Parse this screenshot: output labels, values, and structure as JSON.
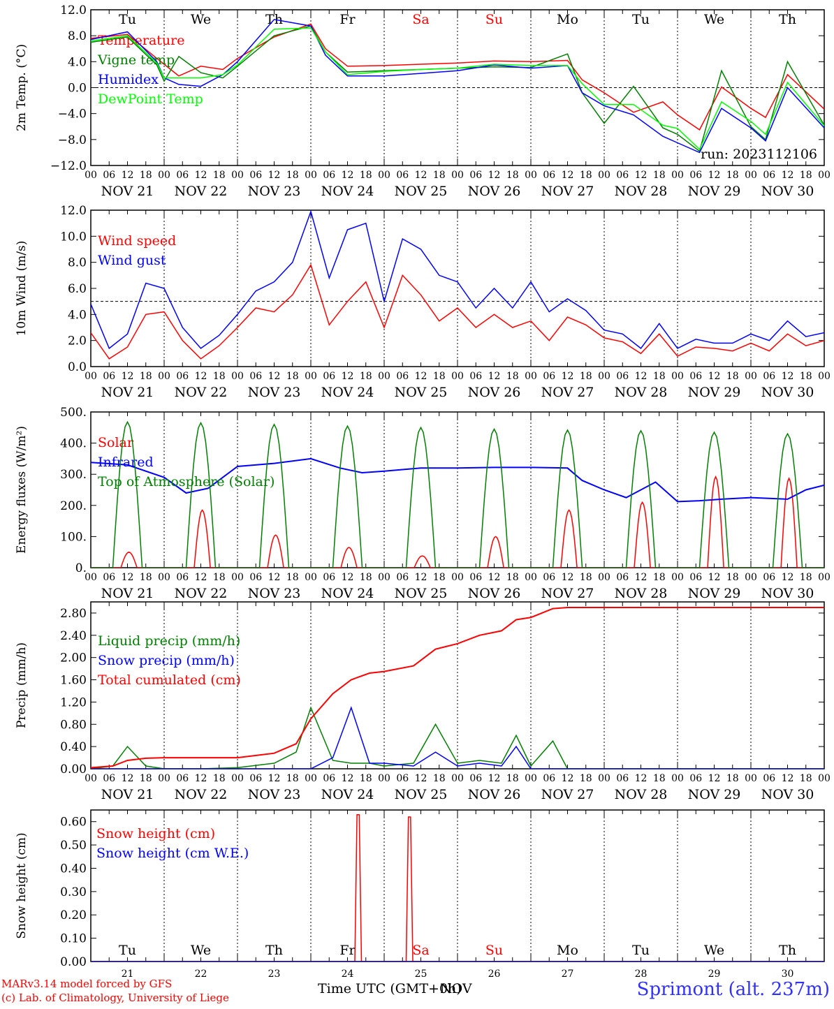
{
  "days_top": [
    {
      "label": "Tu",
      "color": "#000000"
    },
    {
      "label": "We",
      "color": "#000000"
    },
    {
      "label": "Th",
      "color": "#000000"
    },
    {
      "label": "Fr",
      "color": "#000000"
    },
    {
      "label": "Sa",
      "color": "#ff0000"
    },
    {
      "label": "Su",
      "color": "#ff0000"
    },
    {
      "label": "Mo",
      "color": "#000000"
    },
    {
      "label": "Tu",
      "color": "#000000"
    },
    {
      "label": "We",
      "color": "#000000"
    },
    {
      "label": "Th",
      "color": "#000000"
    }
  ],
  "dates": [
    "NOV 21",
    "NOV 22",
    "NOV 23",
    "NOV 24",
    "NOV 25",
    "NOV 26",
    "NOV 27",
    "NOV 28",
    "NOV 29",
    "NOV 30"
  ],
  "day_numbers": [
    "21",
    "22",
    "23",
    "24",
    "25",
    "26",
    "27",
    "28",
    "29",
    "30"
  ],
  "hour_ticks": [
    "00",
    "06",
    "12",
    "18"
  ],
  "hour_end": "00",
  "footer": {
    "model": "MARv3.14 model forced by GFS",
    "credit": "(c) Lab. of Climatology, University of Liege",
    "time_axis": "Time UTC (GMT+0h)",
    "time_axis_overlap": "NOV",
    "station": "Sprimont (alt. 237m)"
  },
  "chart_data": [
    {
      "type": "line",
      "ylabel": "2m Temp. (°C)",
      "ylim": [
        -12,
        12
      ],
      "yticks": [
        "12.0",
        "8.0",
        "4.0",
        "0.0",
        "−4.0",
        "−8.0",
        "−12.0"
      ],
      "ytick_values": [
        12,
        8,
        4,
        0,
        -4,
        -8,
        -12
      ],
      "reference_line": 0,
      "annotation": "run: 2023112106",
      "x_days": [
        0,
        0.5,
        0.9,
        1.0,
        1.2,
        1.5,
        1.8,
        2.0,
        2.5,
        3.0,
        3.2,
        3.5,
        4.0,
        4.5,
        5.0,
        5.5,
        6.0,
        6.5,
        6.7,
        7.0,
        7.4,
        7.8,
        8.0,
        8.3,
        8.6,
        9.0,
        9.2,
        9.5,
        10.0
      ],
      "series": [
        {
          "name": "Temperature",
          "color": "#ff0000",
          "values": [
            7.6,
            8.2,
            4.5,
            3.6,
            1.8,
            3.3,
            2.8,
            4.5,
            7.8,
            9.8,
            6.0,
            3.3,
            3.4,
            3.6,
            3.8,
            4.1,
            4.0,
            4.2,
            1.2,
            -0.8,
            -3.8,
            -2.2,
            -4.2,
            -6.5,
            0.1,
            -3.2,
            -4.6,
            2.0,
            -3.3
          ]
        },
        {
          "name": "Vigne temp",
          "color": "#008000",
          "values": [
            7.0,
            7.8,
            3.5,
            1.0,
            4.8,
            2.3,
            1.5,
            3.3,
            8.0,
            9.5,
            5.5,
            2.4,
            2.6,
            2.8,
            3.0,
            3.2,
            3.1,
            5.2,
            -0.8,
            -5.5,
            0.2,
            -6.2,
            -7.2,
            -9.8,
            2.6,
            -6.0,
            -8.0,
            4.0,
            -5.8
          ]
        },
        {
          "name": "Humidex",
          "color": "#0000ff",
          "values": [
            7.4,
            8.6,
            4.0,
            1.5,
            0.5,
            0.2,
            2.0,
            4.0,
            10.5,
            9.5,
            5.0,
            1.8,
            1.8,
            2.2,
            2.6,
            3.5,
            3.0,
            3.4,
            -0.8,
            -2.8,
            -4.2,
            -7.5,
            -8.5,
            -10.0,
            -3.2,
            -6.2,
            -8.2,
            0.0,
            -6.2
          ]
        },
        {
          "name": "DewPoint Temp",
          "color": "#00ff00",
          "values": [
            7.2,
            8.0,
            3.8,
            1.5,
            1.5,
            1.5,
            2.0,
            3.5,
            9.0,
            9.2,
            5.5,
            2.0,
            2.5,
            2.8,
            3.0,
            3.6,
            3.4,
            3.4,
            0.6,
            -2.6,
            -2.6,
            -5.8,
            -6.3,
            -9.5,
            -2.2,
            -5.2,
            -7.2,
            0.8,
            -5.9
          ]
        }
      ]
    },
    {
      "type": "line",
      "ylabel": "10m Wind (m/s)",
      "ylim": [
        0,
        12
      ],
      "yticks": [
        "12.0",
        "10.0",
        "8.0",
        "6.0",
        "4.0",
        "2.0",
        "0.0"
      ],
      "ytick_values": [
        12,
        10,
        8,
        6,
        4,
        2,
        0
      ],
      "reference_line": 5,
      "x_days": [
        0,
        0.25,
        0.5,
        0.75,
        1.0,
        1.25,
        1.5,
        1.75,
        2.0,
        2.25,
        2.5,
        2.75,
        3.0,
        3.25,
        3.5,
        3.75,
        4.0,
        4.25,
        4.5,
        4.75,
        5.0,
        5.25,
        5.5,
        5.75,
        6.0,
        6.25,
        6.5,
        6.75,
        7.0,
        7.25,
        7.5,
        7.75,
        8.0,
        8.25,
        8.5,
        8.75,
        9.0,
        9.25,
        9.5,
        9.75,
        10.0
      ],
      "series": [
        {
          "name": "Wind speed",
          "color": "#ff0000",
          "values": [
            2.6,
            0.6,
            1.5,
            4.0,
            4.2,
            2.0,
            0.6,
            1.6,
            3.0,
            4.5,
            4.2,
            5.5,
            7.8,
            3.2,
            5.0,
            6.5,
            3.0,
            7.0,
            5.5,
            3.5,
            4.5,
            3.0,
            4.0,
            3.0,
            3.5,
            2.0,
            3.8,
            3.2,
            2.2,
            1.9,
            1.0,
            2.5,
            0.8,
            1.5,
            1.4,
            1.2,
            1.8,
            1.2,
            2.5,
            1.6,
            2.0
          ]
        },
        {
          "name": "Wind gust",
          "color": "#0000ff",
          "values": [
            4.8,
            1.4,
            2.5,
            6.4,
            6.0,
            3.0,
            1.4,
            2.4,
            4.0,
            5.8,
            6.5,
            8.0,
            11.9,
            6.8,
            10.5,
            11.0,
            5.0,
            9.8,
            9.0,
            7.0,
            6.5,
            4.5,
            6.0,
            4.5,
            6.5,
            4.2,
            5.2,
            4.3,
            2.8,
            2.5,
            1.4,
            3.3,
            1.4,
            2.1,
            1.8,
            1.8,
            2.5,
            2.0,
            3.5,
            2.3,
            2.6
          ]
        }
      ]
    },
    {
      "type": "line",
      "ylabel": "Energy fluxes (W/m²)",
      "ylim": [
        0,
        500
      ],
      "yticks": [
        "500.",
        "400.",
        "300.",
        "200.",
        "100.",
        "0."
      ],
      "ytick_values": [
        500,
        400,
        300,
        200,
        100,
        0
      ],
      "reference_line": null,
      "daily_peaks": {
        "Solar": [
          50,
          185,
          105,
          65,
          38,
          100,
          185,
          210,
          292,
          287
        ],
        "Top of Atmosphere (Solar)": [
          468,
          465,
          460,
          455,
          450,
          445,
          442,
          440,
          435,
          430
        ]
      },
      "x_days": [
        0,
        0.5,
        1.0,
        1.3,
        1.6,
        2.0,
        2.5,
        3.0,
        3.4,
        3.7,
        4.0,
        4.5,
        5.0,
        5.5,
        6.0,
        6.5,
        6.7,
        7.0,
        7.3,
        7.7,
        8.0,
        8.3,
        8.6,
        9.0,
        9.5,
        9.75,
        10.0
      ],
      "series": [
        {
          "name": "Solar",
          "color": "#ff0000",
          "values": []
        },
        {
          "name": "Infrared",
          "color": "#0000ff",
          "values": [
            338,
            330,
            290,
            240,
            255,
            325,
            335,
            350,
            320,
            305,
            310,
            320,
            320,
            322,
            322,
            320,
            280,
            250,
            225,
            275,
            212,
            215,
            220,
            225,
            220,
            250,
            265
          ]
        },
        {
          "name": "Top of Atmosphere (Solar)",
          "color": "#008000",
          "values": []
        }
      ]
    },
    {
      "type": "line",
      "ylabel": "Precip (mm/h)",
      "ylim": [
        0,
        3.0
      ],
      "yticks": [
        "2.80",
        "2.40",
        "2.00",
        "1.60",
        "1.20",
        "0.80",
        "0.40",
        "0.00"
      ],
      "ytick_values": [
        2.8,
        2.4,
        2.0,
        1.6,
        1.2,
        0.8,
        0.4,
        0.0
      ],
      "reference_line": null,
      "x_days": [
        0,
        0.3,
        0.5,
        0.75,
        1.0,
        1.5,
        2.0,
        2.5,
        2.8,
        3.0,
        3.3,
        3.55,
        3.8,
        4.0,
        4.4,
        4.7,
        5.0,
        5.3,
        5.6,
        5.8,
        6.0,
        6.3,
        6.5,
        7.0,
        8.0,
        9.0,
        10.0
      ],
      "series": [
        {
          "name": "Liquid precip (mm/h)",
          "color": "#008000",
          "values": [
            0.0,
            0.05,
            0.4,
            0.05,
            0.0,
            0.0,
            0.02,
            0.1,
            0.3,
            1.1,
            0.15,
            0.1,
            0.1,
            0.05,
            0.1,
            0.8,
            0.1,
            0.15,
            0.1,
            0.6,
            0.05,
            0.5,
            0.0,
            0.0,
            0.0,
            0.0,
            0.0
          ]
        },
        {
          "name": "Snow precip (mm/h)",
          "color": "#0000ff",
          "values": [
            0.0,
            0.0,
            0.0,
            0.0,
            0.0,
            0.0,
            0.0,
            0.0,
            0.0,
            0.0,
            0.2,
            1.1,
            0.1,
            0.1,
            0.05,
            0.3,
            0.05,
            0.1,
            0.05,
            0.4,
            0.0,
            0.0,
            0.0,
            0.0,
            0.0,
            0.0,
            0.0
          ]
        },
        {
          "name": "Total cumulated (cm)",
          "color": "#ff0000",
          "values": [
            0.02,
            0.05,
            0.15,
            0.19,
            0.2,
            0.2,
            0.2,
            0.28,
            0.45,
            0.9,
            1.35,
            1.6,
            1.72,
            1.75,
            1.85,
            2.15,
            2.25,
            2.4,
            2.48,
            2.68,
            2.72,
            2.88,
            2.9,
            2.9,
            2.9,
            2.9,
            2.9
          ]
        }
      ]
    },
    {
      "type": "line",
      "ylabel": "Snow height (cm)",
      "ylim": [
        0,
        0.65
      ],
      "yticks": [
        "0.60",
        "0.50",
        "0.40",
        "0.30",
        "0.20",
        "0.10",
        "0.00"
      ],
      "ytick_values": [
        0.6,
        0.5,
        0.4,
        0.3,
        0.2,
        0.1,
        0.0
      ],
      "reference_line": null,
      "x_days": [
        0,
        3.6,
        3.63,
        3.66,
        3.69,
        4.3,
        4.33,
        4.36,
        4.39,
        10.0
      ],
      "series": [
        {
          "name": "Snow height (cm)",
          "color": "#ff0000",
          "values": [
            0,
            0,
            0.63,
            0.63,
            0,
            0,
            0.62,
            0.62,
            0,
            0
          ]
        },
        {
          "name": "Snow height (cm W.E.)",
          "color": "#0000ff",
          "values": [
            0,
            0,
            0,
            0,
            0,
            0,
            0,
            0,
            0,
            0
          ]
        }
      ]
    }
  ]
}
